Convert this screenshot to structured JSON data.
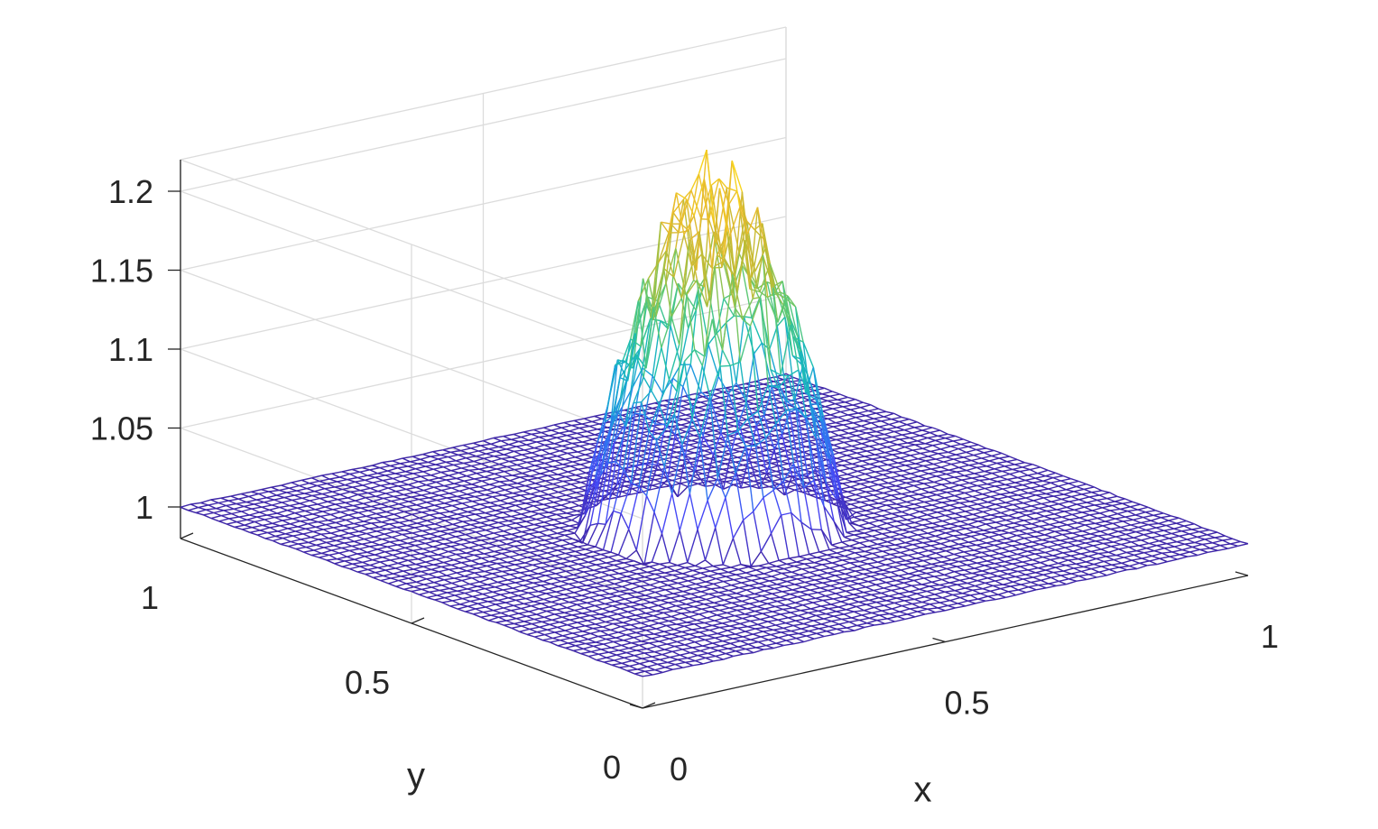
{
  "chart_data": {
    "type": "surface",
    "title": "",
    "xlabel": "x",
    "ylabel": "y",
    "zlabel": "",
    "xlim": [
      0,
      1
    ],
    "ylim": [
      0,
      1
    ],
    "zlim": [
      0.98,
      1.22
    ],
    "x_ticks": [
      0,
      0.5,
      1
    ],
    "y_ticks": [
      0,
      0.5,
      1
    ],
    "z_ticks": [
      1,
      1.05,
      1.1,
      1.15,
      1.2
    ],
    "x_tick_labels": [
      "0",
      "0.5",
      "1"
    ],
    "y_tick_labels": [
      "0",
      "0.5",
      "1"
    ],
    "z_tick_labels": [
      "1",
      "1.05",
      "1.1",
      "1.15",
      "1.2"
    ],
    "grid": true,
    "colormap": "parula",
    "colormap_stops": [
      "#3e26a8",
      "#4745f6",
      "#2f76f0",
      "#1aa3d9",
      "#1cbfb0",
      "#62c96f",
      "#b4bd38",
      "#e6b92f",
      "#f8d41d"
    ],
    "background_value": 1.0,
    "peak": {
      "x": 0.5,
      "y": 0.5,
      "z_max": 1.22,
      "base_radius": 0.18
    },
    "mesh_resolution": 60
  }
}
